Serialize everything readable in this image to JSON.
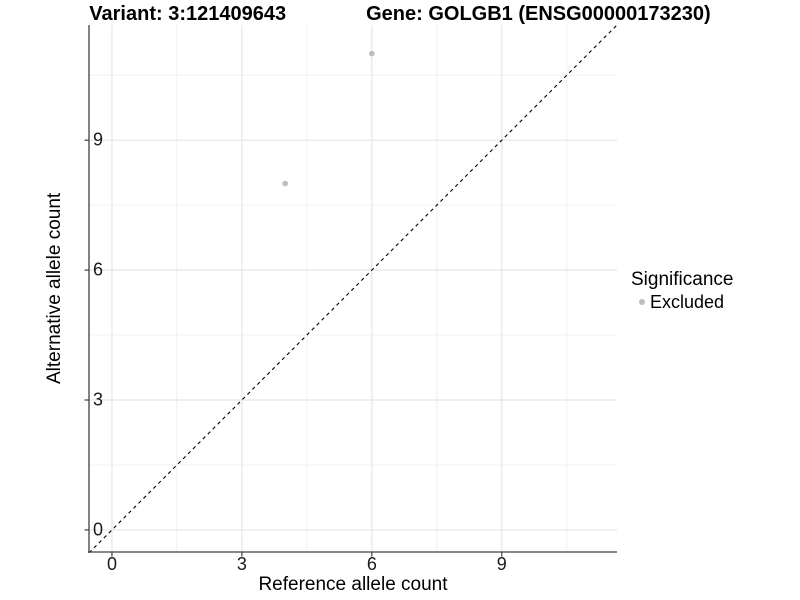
{
  "chart_data": {
    "type": "scatter",
    "title_left": "Variant: 3:121409643",
    "title_right": "Gene: GOLGB1 (ENSG00000173230)",
    "xlabel": "Reference allele count",
    "ylabel": "Alternative allele count",
    "xlim": [
      -0.53,
      11.66
    ],
    "ylim": [
      -0.51,
      11.66
    ],
    "xticks": [
      0,
      3,
      6,
      9
    ],
    "yticks": [
      0,
      3,
      6,
      9
    ],
    "xticks_minor": [
      1.5,
      4.5,
      7.5,
      10.5
    ],
    "yticks_minor": [
      1.5,
      4.5,
      7.5,
      10.5
    ],
    "grid": "major-and-minor",
    "series": [
      {
        "name": "Excluded",
        "marker": "circle",
        "color": "#bebebe",
        "points": [
          {
            "x": 4,
            "y": 8
          },
          {
            "x": 6,
            "y": 11
          }
        ]
      }
    ],
    "reference_line": {
      "slope": 1,
      "intercept": 0,
      "linetype": "dashed",
      "color": "#000000"
    },
    "legend": {
      "title": "Significance",
      "position": "right",
      "items": [
        {
          "label": "Excluded",
          "color": "#bebebe",
          "marker": "circle"
        }
      ]
    },
    "colors": {
      "background": "#ffffff",
      "grid_major": "#e5e5e5",
      "grid_minor": "#f0f0f0",
      "axis": "#404040",
      "text": "#000000"
    }
  }
}
